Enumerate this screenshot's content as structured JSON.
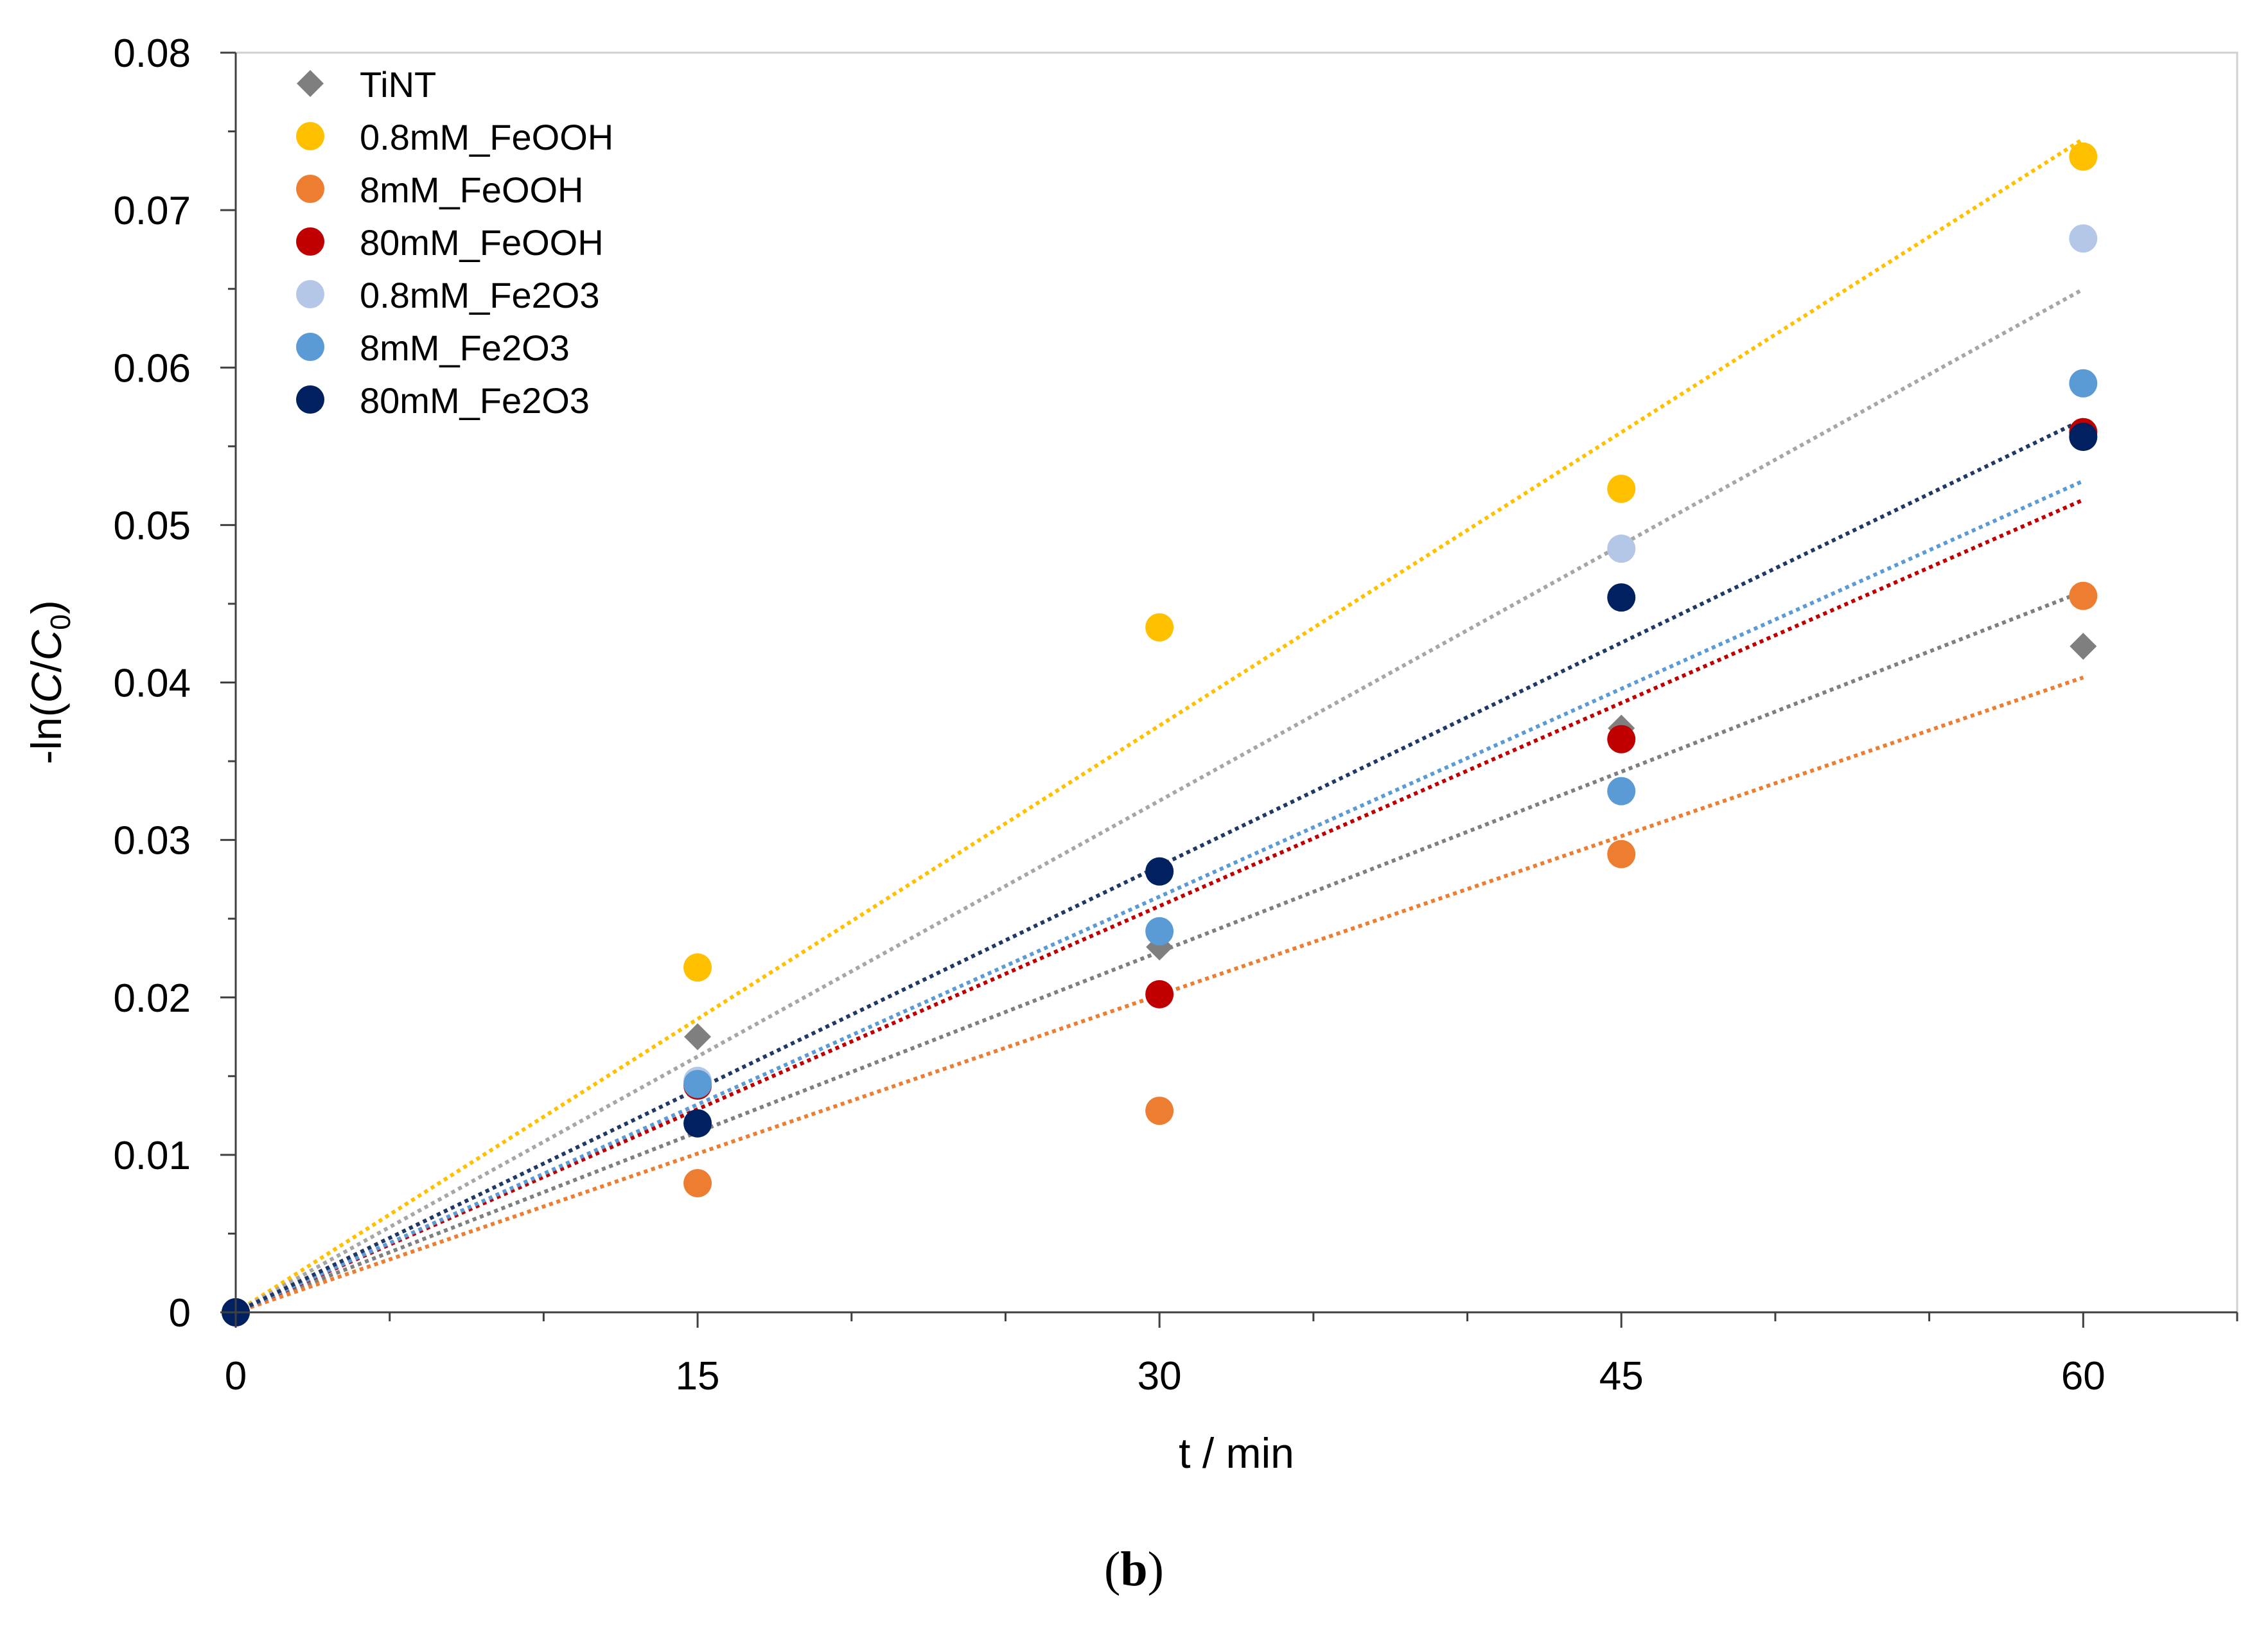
{
  "chart_data": {
    "type": "scatter",
    "xlabel": "t / min",
    "ylabel_parts": [
      "-ln(",
      "C",
      "/",
      "C",
      "0",
      ")"
    ],
    "xlim": [
      0,
      65
    ],
    "ylim": [
      0,
      0.08
    ],
    "x_ticks": [
      0,
      15,
      30,
      45,
      60
    ],
    "x_tick_labels": [
      "0",
      "15",
      "30",
      "45",
      "60"
    ],
    "y_ticks": [
      0,
      0.01,
      0.02,
      0.03,
      0.04,
      0.05,
      0.06,
      0.07,
      0.08
    ],
    "y_tick_labels": [
      "0",
      "0.01",
      "0.02",
      "0.03",
      "0.04",
      "0.05",
      "0.06",
      "0.07",
      "0.08"
    ],
    "grid": false,
    "legend_position": "top-left",
    "trendlines": "linear through origin, dotted",
    "series": [
      {
        "name": "TiNT",
        "marker": "diamond",
        "color": "#7f7f7f",
        "line_color": "#7f7f7f",
        "x": [
          0,
          15,
          30,
          45,
          60
        ],
        "y": [
          0,
          0.0175,
          0.0232,
          0.0371,
          0.0423
        ],
        "slope": 0.000763
      },
      {
        "name": "0.8mM_FeOOH",
        "marker": "circle",
        "color": "#ffc000",
        "line_color": "#ffc000",
        "x": [
          0,
          15,
          30,
          45,
          60
        ],
        "y": [
          0,
          0.0219,
          0.0435,
          0.0523,
          0.0734
        ],
        "slope": 0.001242
      },
      {
        "name": "8mM_FeOOH",
        "marker": "circle",
        "color": "#ed7d31",
        "line_color": "#ed7d31",
        "x": [
          0,
          15,
          30,
          45,
          60
        ],
        "y": [
          0,
          0.0082,
          0.0128,
          0.0291,
          0.0455
        ],
        "slope": 0.000672
      },
      {
        "name": "80mM_FeOOH",
        "marker": "circle",
        "color": "#c00000",
        "line_color": "#c00000",
        "x": [
          0,
          15,
          30,
          45,
          60
        ],
        "y": [
          0,
          0.0144,
          0.0202,
          0.0364,
          0.0559
        ],
        "slope": 0.00086
      },
      {
        "name": "0.8mM_Fe2O3",
        "marker": "circle",
        "color": "#b4c7e7",
        "line_color": "#a6a6a6",
        "x": [
          0,
          15,
          30,
          45,
          60
        ],
        "y": [
          0,
          0.0147,
          0.028,
          0.0485,
          0.0682
        ],
        "slope": 0.001083
      },
      {
        "name": "8mM_Fe2O3",
        "marker": "circle",
        "color": "#5b9bd5",
        "line_color": "#5b9bd5",
        "x": [
          0,
          15,
          30,
          45,
          60
        ],
        "y": [
          0,
          0.0145,
          0.0242,
          0.0331,
          0.059
        ],
        "slope": 0.00088
      },
      {
        "name": "80mM_Fe2O3",
        "marker": "circle",
        "color": "#002060",
        "line_color": "#1f3864",
        "x": [
          0,
          15,
          30,
          45,
          60
        ],
        "y": [
          0,
          0.012,
          0.028,
          0.0454,
          0.0556
        ],
        "slope": 0.000945
      }
    ]
  },
  "caption": {
    "open": "(",
    "letter": "b",
    "close": ")"
  }
}
